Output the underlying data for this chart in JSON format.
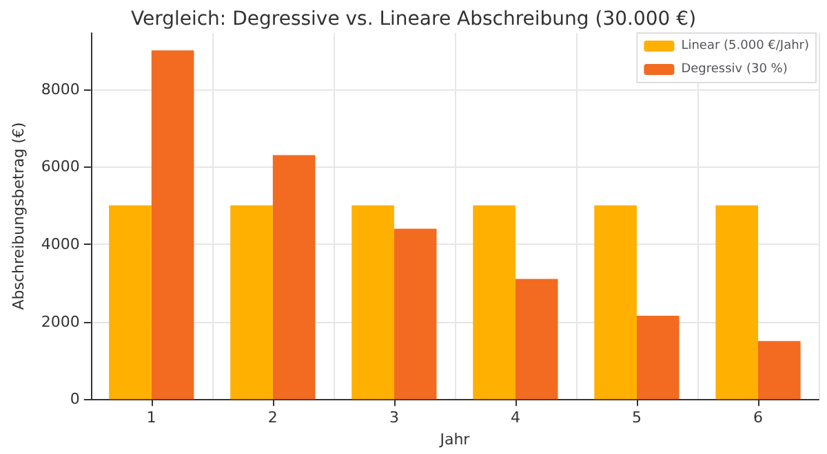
{
  "chart_data": {
    "type": "bar",
    "title": "Vergleich: Degressive vs. Lineare Abschreibung (30.000 €)",
    "xlabel": "Jahr",
    "ylabel": "Abschreibungsbetrag (€)",
    "categories": [
      "1",
      "2",
      "3",
      "4",
      "5",
      "6"
    ],
    "series": [
      {
        "name": "Linear (5.000 €/Jahr)",
        "color": "#ffb000",
        "values": [
          5000,
          5000,
          5000,
          5000,
          5000,
          5000
        ]
      },
      {
        "name": "Degressiv (30 %)",
        "color": "#f26b21",
        "values": [
          9000,
          6300,
          4400,
          3100,
          2150,
          1500
        ]
      }
    ],
    "ylim": [
      0,
      9450
    ],
    "yticks": [
      0,
      2000,
      4000,
      6000,
      8000
    ],
    "grid": true,
    "legend": "top right"
  }
}
